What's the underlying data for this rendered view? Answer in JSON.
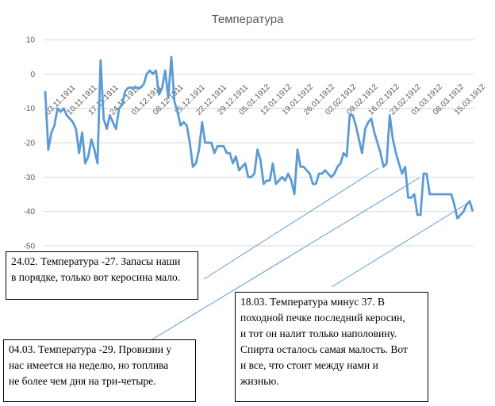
{
  "chart_data": {
    "type": "line",
    "title": "Температура",
    "ylim": [
      -50,
      10
    ],
    "y_ticks": [
      10,
      0,
      -10,
      -20,
      -30,
      -40,
      -50
    ],
    "grid": true,
    "legend": "none",
    "series_color": "#5B9BD5",
    "x_labels": [
      "03.11.1911",
      "10.11.1911",
      "17.11.1911",
      "24.11.1911",
      "01.12.1911",
      "08.12.1911",
      "15.12.1911",
      "22.12.1911",
      "29.12.1911",
      "05.01.1912",
      "12.01.1912",
      "19.01.1912",
      "26.01.1912",
      "02.02.1912",
      "09.02.1912",
      "16.02.1912",
      "23.02.1912",
      "01.03.1912",
      "08.03.1912",
      "15.03.1912"
    ],
    "series": [
      {
        "values": [
          -5,
          -22,
          -17,
          -15,
          -10,
          -11,
          -10,
          -12,
          -13,
          -14,
          -16,
          -23,
          -17,
          -26,
          -24,
          -19,
          -22,
          -26,
          4,
          -13,
          -16,
          -12,
          -14,
          -16,
          -10,
          -9,
          -5,
          -4,
          -4,
          -4,
          -4,
          -4,
          -3,
          0,
          1,
          0,
          1,
          -6,
          -4,
          1,
          -7,
          5,
          -8,
          -11,
          -15,
          -14,
          -15,
          -20,
          -27,
          -26,
          -22,
          -14,
          -20,
          -20,
          -20,
          -23,
          -21,
          -21,
          -21,
          -23,
          -23,
          -26,
          -24,
          -28,
          -27,
          -26,
          -30,
          -30,
          -29,
          -22,
          -25,
          -32,
          -31,
          -31,
          -26,
          -32,
          -31,
          -30,
          -31,
          -29,
          -31,
          -35,
          -22,
          -27,
          -27,
          -28,
          -29,
          -32,
          -32,
          -29,
          -29,
          -28,
          -29,
          -30,
          -29,
          -27,
          -26,
          -23,
          -24,
          -12,
          -12,
          -15,
          -19,
          -23,
          -16,
          -14,
          -13,
          -17,
          -20,
          -23,
          -27,
          -26,
          -12,
          -19,
          -23,
          -26,
          -29,
          -27,
          -36,
          -36,
          -35,
          -41,
          -41,
          -29,
          -29,
          -35,
          -35,
          -35,
          -35,
          -35,
          -35,
          -35,
          -35,
          -38,
          -42,
          -41,
          -40,
          -38,
          -37,
          -40
        ]
      }
    ]
  },
  "notes": {
    "note1": "24.02. Температура  -27. Запасы наши\nв порядке, только вот керосина мало.",
    "note2": "04.03. Температура  -29. Провизии у\nнас имеется на неделю, но топлива\nне более чем дня на три-четыре.",
    "note3": "18.03. Температура  минус 37. В\nпоходной печке последний керосин,\nи тот он налит только наполовину.\nСпирта осталось самая малость. Вот\nи все, что стоит между нами и\nжизнью."
  }
}
